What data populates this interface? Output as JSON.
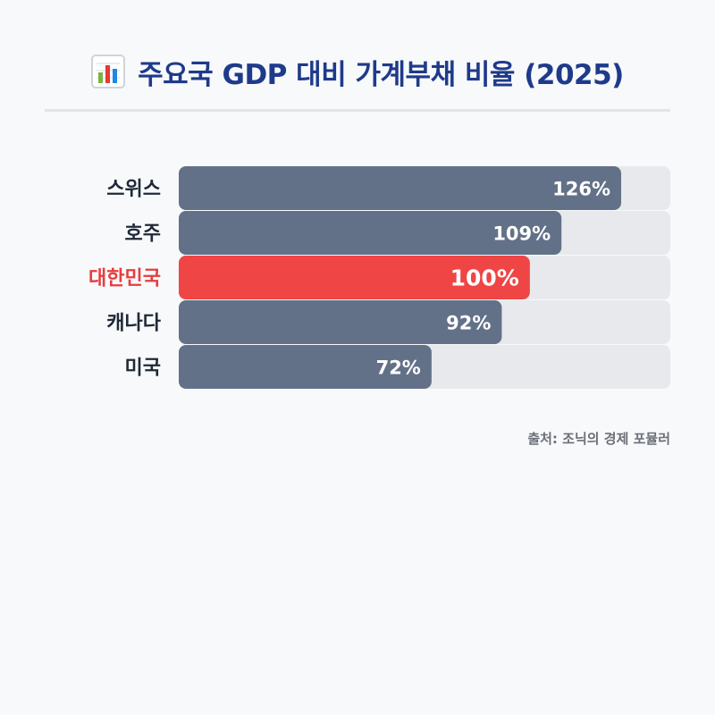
{
  "header": {
    "title": "주요국 GDP 대비 가계부채 비율 (2025)",
    "icon": "bar-chart-icon"
  },
  "chart_data": {
    "type": "bar",
    "orientation": "horizontal",
    "categories": [
      "스위스",
      "호주",
      "대한민국",
      "캐나다",
      "미국"
    ],
    "values": [
      126,
      109,
      100,
      92,
      72
    ],
    "value_labels": [
      "126%",
      "109%",
      "100%",
      "92%",
      "72%"
    ],
    "unit": "%",
    "xlim": [
      0,
      140
    ],
    "highlight_index": 2,
    "grid": false,
    "legend": "none"
  },
  "colors": {
    "title": "#1e3a8a",
    "bar": "#637188",
    "highlight_bar": "#ef4545",
    "highlight_label": "#e53e3e",
    "track": "#e8e9ec",
    "label": "#1f2937",
    "value_text": "#ffffff",
    "source": "#6b6f78"
  },
  "footer": {
    "source": "출처: 조닉의 경제 포뮬러"
  }
}
